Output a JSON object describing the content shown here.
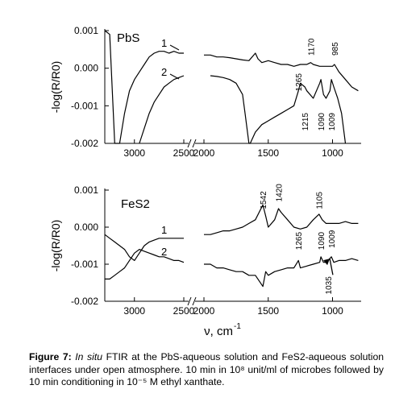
{
  "chart_data": [
    {
      "type": "line",
      "system_label": "PbS",
      "ylabel": "-log(R/R0)",
      "ylim": [
        -0.002,
        0.001
      ],
      "y_ticks": [
        "0.001",
        "0.000",
        "-0.001",
        "-0.002"
      ],
      "x_ticks": [
        "3000",
        "2500",
        "2000",
        "1500",
        "1000"
      ],
      "x_axis_break": "between 2500 and 2000",
      "xlim": [
        3300,
        800
      ],
      "series": [
        {
          "name": "1",
          "x": [
            3300,
            3250,
            3200,
            3150,
            3100,
            3050,
            3000,
            2950,
            2900,
            2850,
            2800,
            2750,
            2700,
            2650,
            2600,
            2550,
            2500,
            2000,
            1950,
            1900,
            1850,
            1800,
            1750,
            1700,
            1650,
            1600,
            1580,
            1550,
            1500,
            1450,
            1400,
            1350,
            1300,
            1250,
            1200,
            1170,
            1150,
            1100,
            1050,
            1000,
            985,
            950,
            900,
            850,
            800
          ],
          "y": [
            0.001,
            0.0009,
            -0.002,
            -0.002,
            -0.0012,
            -0.0006,
            -0.0003,
            -0.0001,
            0.0001,
            0.0003,
            0.0004,
            0.00045,
            0.00045,
            0.0004,
            0.00045,
            0.0004,
            0.0004,
            0.00035,
            0.00035,
            0.0003,
            0.0003,
            0.00028,
            0.00025,
            0.00022,
            0.0002,
            0.0004,
            0.00025,
            0.00015,
            0.0002,
            0.00015,
            0.0001,
            0.0001,
            5e-05,
            0.0001,
            0.0001,
            0.00015,
            0.0001,
            5e-05,
            5e-05,
            5e-05,
            0.0001,
            -0.0001,
            -0.0003,
            -0.0005,
            -0.0006
          ]
        },
        {
          "name": "2",
          "x": [
            2950,
            2900,
            2850,
            2800,
            2750,
            2700,
            2650,
            2600,
            2550,
            2500,
            1950,
            1900,
            1850,
            1800,
            1750,
            1700,
            1680,
            1650,
            1640,
            1600,
            1550,
            1500,
            1450,
            1400,
            1350,
            1300,
            1265,
            1250,
            1215,
            1200,
            1150,
            1100,
            1090,
            1070,
            1050,
            1020,
            1009,
            990,
            960,
            930,
            900
          ],
          "y": [
            -0.002,
            -0.0016,
            -0.0012,
            -0.0009,
            -0.0007,
            -0.0005,
            -0.0004,
            -0.0003,
            -0.00025,
            -0.0002,
            -0.0002,
            -0.00022,
            -0.00025,
            -0.0003,
            -0.0004,
            -0.0007,
            -0.0012,
            -0.002,
            -0.002,
            -0.0017,
            -0.0015,
            -0.0014,
            -0.0013,
            -0.0012,
            -0.0011,
            -0.001,
            -0.0006,
            -0.0004,
            -0.0005,
            -0.0006,
            -0.0008,
            -0.0004,
            -0.0003,
            -0.0007,
            -0.0008,
            -0.0006,
            -0.0003,
            -0.0005,
            -0.0008,
            -0.0012,
            -0.002
          ]
        }
      ],
      "annotations": [
        {
          "text": "1170",
          "x": 1170
        },
        {
          "text": "985",
          "x": 985
        },
        {
          "text": "1265",
          "x": 1265
        },
        {
          "text": "1215",
          "x": 1215
        },
        {
          "text": "1090",
          "x": 1090
        },
        {
          "text": "1009",
          "x": 1009
        }
      ]
    },
    {
      "type": "line",
      "system_label": "FeS2",
      "ylabel": "-log(R/R0)",
      "ylim": [
        -0.002,
        0.001
      ],
      "y_ticks": [
        "0.001",
        "0.000",
        "-0.001",
        "-0.002"
      ],
      "x_ticks": [
        "3000",
        "2500",
        "2000",
        "1500",
        "1000"
      ],
      "x_axis_break": "between 2500 and 2000",
      "xlim": [
        3300,
        800
      ],
      "xlabel": "ν, cm-1",
      "series": [
        {
          "name": "1",
          "x": [
            3300,
            3250,
            3200,
            3150,
            3100,
            3050,
            3000,
            2950,
            2900,
            2850,
            2800,
            2750,
            2700,
            2650,
            2600,
            2550,
            2500,
            2000,
            1950,
            1900,
            1850,
            1800,
            1750,
            1700,
            1650,
            1600,
            1542,
            1520,
            1500,
            1450,
            1420,
            1400,
            1350,
            1300,
            1250,
            1200,
            1150,
            1105,
            1080,
            1050,
            1000,
            950,
            900,
            850,
            800
          ],
          "y": [
            -0.0002,
            -0.0003,
            -0.0004,
            -0.0005,
            -0.0006,
            -0.0008,
            -0.0009,
            -0.0007,
            -0.0005,
            -0.0004,
            -0.00035,
            -0.0003,
            -0.0003,
            -0.0003,
            -0.0003,
            -0.0003,
            -0.0003,
            -0.0002,
            -0.0002,
            -0.00015,
            -0.0001,
            -0.0001,
            -5e-05,
            0.0,
            0.0001,
            0.0002,
            0.0006,
            0.0003,
            0.0,
            0.0002,
            0.0005,
            0.0004,
            0.0002,
            0.0,
            -5e-05,
            0.0,
            0.0002,
            0.00035,
            0.0002,
            0.0001,
            0.0001,
            0.0001,
            0.00015,
            0.0001,
            0.0001
          ]
        },
        {
          "name": "2",
          "x": [
            3300,
            3250,
            3200,
            3150,
            3100,
            3050,
            3000,
            2950,
            2900,
            2850,
            2800,
            2750,
            2700,
            2650,
            2600,
            2550,
            2500,
            2000,
            1950,
            1900,
            1850,
            1800,
            1750,
            1700,
            1650,
            1600,
            1542,
            1520,
            1500,
            1450,
            1400,
            1350,
            1300,
            1265,
            1250,
            1200,
            1150,
            1100,
            1090,
            1070,
            1050,
            1035,
            1009,
            990,
            950,
            900,
            850,
            800
          ],
          "y": [
            -0.0014,
            -0.0014,
            -0.0013,
            -0.0012,
            -0.0011,
            -0.0009,
            -0.0007,
            -0.0006,
            -0.00065,
            -0.0007,
            -0.00075,
            -0.0008,
            -0.0008,
            -0.00085,
            -0.0009,
            -0.0009,
            -0.00095,
            -0.001,
            -0.001,
            -0.0011,
            -0.0011,
            -0.00115,
            -0.0012,
            -0.0012,
            -0.0013,
            -0.0013,
            -0.0016,
            -0.0012,
            -0.0013,
            -0.0012,
            -0.00115,
            -0.0011,
            -0.0011,
            -0.0009,
            -0.0011,
            -0.00105,
            -0.001,
            -0.00095,
            -0.0008,
            -0.00095,
            -0.00095,
            -0.0009,
            -0.0008,
            -0.00095,
            -0.0009,
            -0.0009,
            -0.00085,
            -0.0009
          ]
        }
      ],
      "annotations": [
        {
          "text": "1542",
          "x": 1542
        },
        {
          "text": "1420",
          "x": 1420
        },
        {
          "text": "1105",
          "x": 1105
        },
        {
          "text": "1265",
          "x": 1265
        },
        {
          "text": "1090",
          "x": 1090
        },
        {
          "text": "1009",
          "x": 1009
        },
        {
          "text": "1035",
          "x": 1035
        }
      ]
    }
  ],
  "caption": {
    "label": "Figure 7:",
    "italic": "In situ",
    "text": "FTIR at the PbS-aqueous solution and FeS2-aqueous solution interfaces under open atmosphere. 10 min in 10⁸ unit/ml of microbes followed by 10 min conditioning in 10⁻⁵ M ethyl xanthate."
  }
}
